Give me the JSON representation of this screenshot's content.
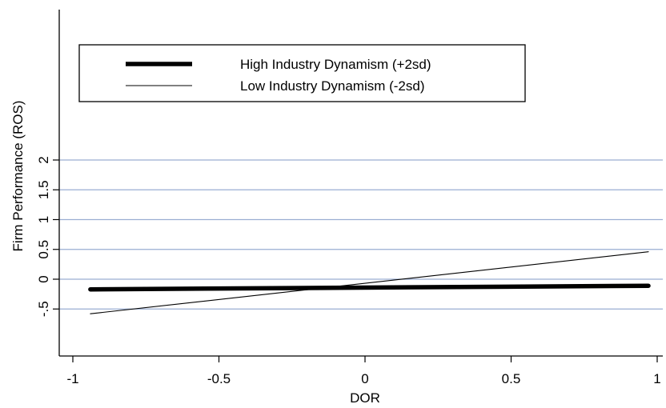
{
  "chart_data": {
    "type": "line",
    "xlabel": "DOR",
    "ylabel": "Firm Performance (ROS)",
    "xlim": [
      -1,
      1
    ],
    "ylim": [
      -0.6,
      2.1
    ],
    "xticks": [
      -1,
      -0.5,
      0,
      0.5,
      1
    ],
    "xtick_labels": [
      "-1",
      "-0.5",
      "0",
      "0.5",
      "1"
    ],
    "yticks": [
      -0.5,
      0,
      0.5,
      1,
      1.5,
      2
    ],
    "ytick_labels": [
      "-.5",
      "0",
      "0.5",
      "1",
      "1.5",
      "2"
    ],
    "grid": "horizontal",
    "legend_position": "top-left",
    "series": [
      {
        "name": "High Industry Dynamism (+2sd)",
        "x": [
          -0.94,
          0.97
        ],
        "y": [
          -0.17,
          -0.11
        ],
        "color": "#000000",
        "style": "thick"
      },
      {
        "name": "Low Industry Dynamism (-2sd)",
        "x": [
          -0.94,
          0.97
        ],
        "y": [
          -0.58,
          0.46
        ],
        "color": "#000000",
        "style": "thin"
      }
    ]
  }
}
